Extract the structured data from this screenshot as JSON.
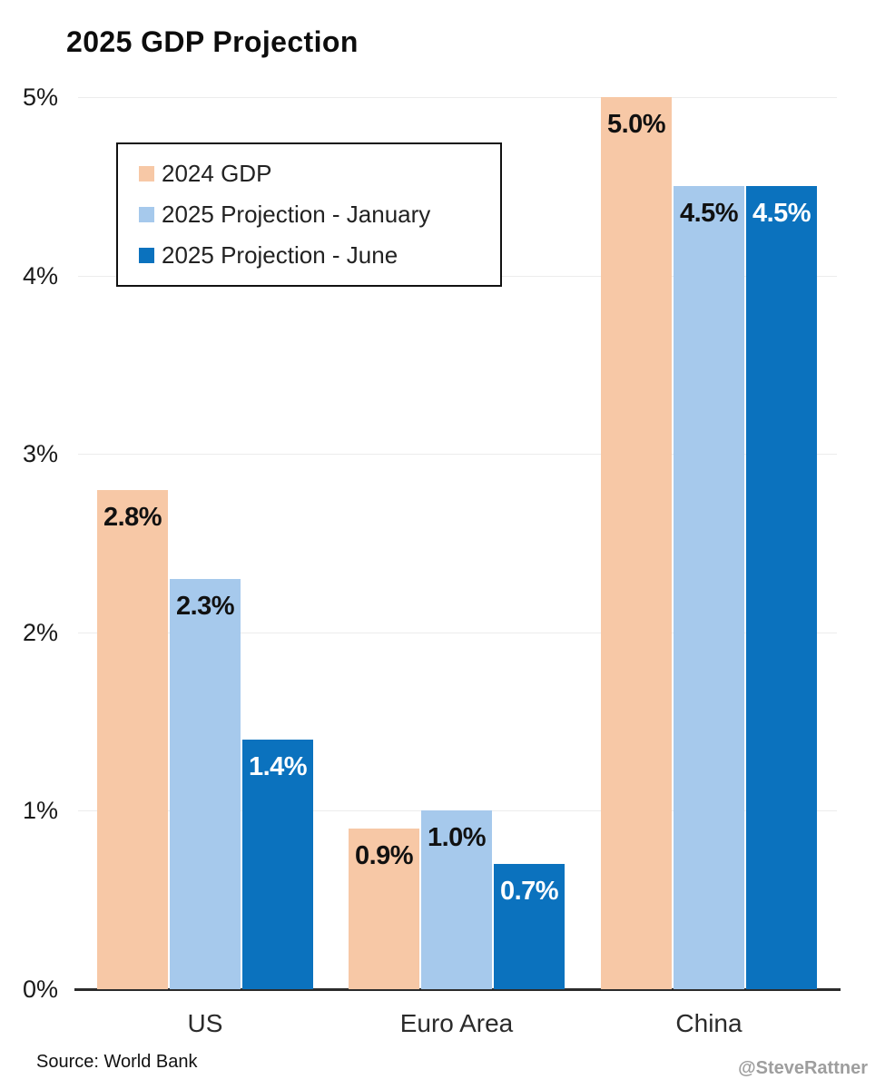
{
  "chart_data": {
    "type": "bar",
    "title": "2025 GDP Projection",
    "categories": [
      "US",
      "Euro Area",
      "China"
    ],
    "series": [
      {
        "name": "2024 GDP",
        "color": "#F7C8A6",
        "label_color": "#111111",
        "values": [
          2.8,
          0.9,
          5.0
        ],
        "labels": [
          "2.8%",
          "0.9%",
          "5.0%"
        ]
      },
      {
        "name": "2025 Projection - January",
        "color": "#A6C9EC",
        "label_color": "#111111",
        "values": [
          2.3,
          1.0,
          4.5
        ],
        "labels": [
          "2.3%",
          "1.0%",
          "4.5%"
        ]
      },
      {
        "name": "2025 Projection - June",
        "color": "#0B72BE",
        "label_color": "#FFFFFF",
        "values": [
          1.4,
          0.7,
          4.5
        ],
        "labels": [
          "1.4%",
          "0.7%",
          "4.5%"
        ]
      }
    ],
    "ylim": [
      0,
      5
    ],
    "yticks": [
      "0%",
      "1%",
      "2%",
      "3%",
      "4%",
      "5%"
    ],
    "xlabel": "",
    "ylabel": "",
    "grid": true,
    "legend_position": "upper-left-inside"
  },
  "footer": {
    "source": "Source: World Bank",
    "attribution": "@SteveRattner"
  }
}
